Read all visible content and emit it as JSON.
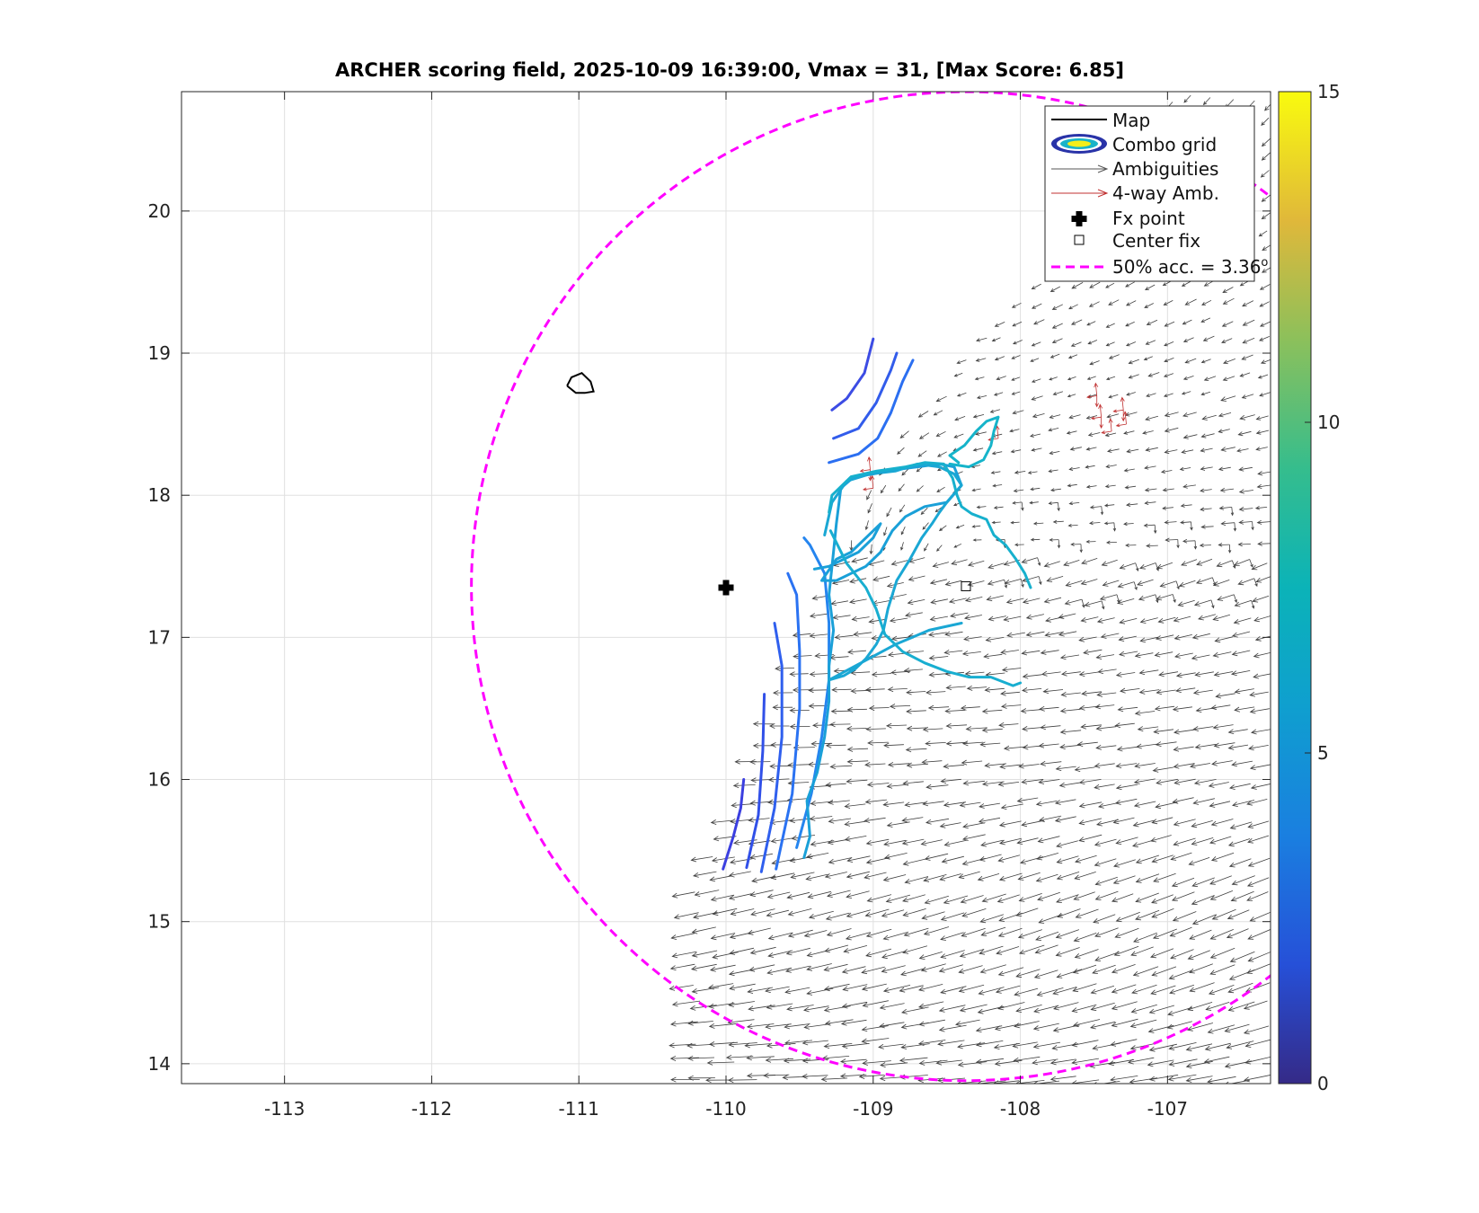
{
  "chart_data": {
    "type": "scatter",
    "title": "ARCHER scoring field, 2025-10-09 16:39:00, Vmax = 31, [Max Score: 6.85]",
    "xlabel": "",
    "ylabel": "",
    "xlim": [
      -113.7,
      -106.3
    ],
    "ylim": [
      13.86,
      20.84
    ],
    "xticks": [
      -113,
      -112,
      -111,
      -110,
      -109,
      -108,
      -107
    ],
    "yticks": [
      14,
      15,
      16,
      17,
      18,
      19,
      20
    ],
    "grid": true,
    "colorbar": {
      "min": 0,
      "max": 15,
      "ticks": [
        0,
        5,
        10,
        15
      ],
      "colormap": "parula"
    },
    "legend": {
      "placement": "top-right",
      "entries": [
        "Map",
        "Combo grid",
        "Ambiguities",
        "4-way Amb.",
        "Fx point",
        "Center fix",
        "50% acc. = 3.36°"
      ],
      "accuracy_label": "50% acc. = 3.36",
      "accuracy_superscript": "o"
    },
    "fx_point": {
      "x": -110.0,
      "y": 17.35
    },
    "center_fix": {
      "x": -108.37,
      "y": 17.36
    },
    "accuracy_circle": {
      "center_x": -108.37,
      "center_y": 17.36,
      "radius_deg": 3.36,
      "color": "#ff00ff"
    },
    "map_outlines": [
      [
        [
          -111.08,
          18.77
        ],
        [
          -111.05,
          18.83
        ],
        [
          -110.98,
          18.86
        ],
        [
          -110.92,
          18.8
        ],
        [
          -110.9,
          18.73
        ],
        [
          -110.96,
          18.72
        ],
        [
          -111.02,
          18.72
        ],
        [
          -111.08,
          18.77
        ]
      ]
    ],
    "contours": [
      {
        "level": 2.5,
        "color": "#3b3fe0",
        "points": [
          [
            -110.02,
            15.37
          ],
          [
            -109.95,
            15.6
          ],
          [
            -109.9,
            15.8
          ],
          [
            -109.88,
            16.0
          ]
        ]
      },
      {
        "level": 3.0,
        "color": "#3150e8",
        "points": [
          [
            -109.86,
            15.38
          ],
          [
            -109.78,
            15.75
          ],
          [
            -109.75,
            16.2
          ],
          [
            -109.74,
            16.6
          ]
        ]
      },
      {
        "level": 3.3,
        "color": "#2f5fee",
        "points": [
          [
            -109.76,
            15.35
          ],
          [
            -109.67,
            15.8
          ],
          [
            -109.62,
            16.3
          ],
          [
            -109.62,
            16.8
          ],
          [
            -109.67,
            17.1
          ]
        ]
      },
      {
        "level": 3.7,
        "color": "#2a72f2",
        "points": [
          [
            -109.66,
            15.37
          ],
          [
            -109.55,
            15.9
          ],
          [
            -109.5,
            16.5
          ],
          [
            -109.5,
            16.9
          ],
          [
            -109.52,
            17.3
          ],
          [
            -109.58,
            17.45
          ]
        ]
      },
      {
        "level": 4.2,
        "color": "#2585ef",
        "points": [
          [
            -109.52,
            15.52
          ],
          [
            -109.42,
            15.9
          ],
          [
            -109.35,
            16.3
          ],
          [
            -109.3,
            16.7
          ],
          [
            -109.3,
            17.1
          ],
          [
            -109.33,
            17.45
          ],
          [
            -109.43,
            17.65
          ],
          [
            -109.47,
            17.7
          ]
        ]
      },
      {
        "level": 2.6,
        "color": "#3c4ce4",
        "points": [
          [
            -109.28,
            18.6
          ],
          [
            -109.18,
            18.68
          ],
          [
            -109.06,
            18.86
          ],
          [
            -109.0,
            19.1
          ]
        ]
      },
      {
        "level": 3.2,
        "color": "#325ceb",
        "points": [
          [
            -109.27,
            18.4
          ],
          [
            -109.1,
            18.47
          ],
          [
            -108.98,
            18.65
          ],
          [
            -108.88,
            18.88
          ],
          [
            -108.84,
            19.0
          ]
        ]
      },
      {
        "level": 3.9,
        "color": "#2b6ff1",
        "points": [
          [
            -109.3,
            18.23
          ],
          [
            -109.1,
            18.29
          ],
          [
            -108.97,
            18.4
          ],
          [
            -108.88,
            18.58
          ],
          [
            -108.8,
            18.8
          ],
          [
            -108.73,
            18.95
          ]
        ]
      },
      {
        "level": 5.6,
        "color": "#1aa0d8",
        "points": [
          [
            -109.47,
            15.45
          ],
          [
            -109.43,
            15.6
          ],
          [
            -109.45,
            15.85
          ],
          [
            -109.38,
            16.05
          ],
          [
            -109.33,
            16.3
          ],
          [
            -109.3,
            16.55
          ],
          [
            -109.3,
            16.8
          ],
          [
            -109.27,
            17.05
          ],
          [
            -109.3,
            17.3
          ],
          [
            -109.27,
            17.6
          ],
          [
            -109.25,
            17.8
          ],
          [
            -109.22,
            18.05
          ],
          [
            -109.13,
            18.13
          ],
          [
            -109.0,
            18.15
          ],
          [
            -108.85,
            18.18
          ],
          [
            -108.7,
            18.2
          ],
          [
            -108.55,
            18.22
          ],
          [
            -108.45,
            18.2
          ],
          [
            -108.4,
            18.07
          ],
          [
            -108.5,
            17.95
          ],
          [
            -108.65,
            17.92
          ],
          [
            -108.78,
            17.85
          ],
          [
            -108.87,
            17.75
          ],
          [
            -108.95,
            17.6
          ],
          [
            -109.05,
            17.5
          ],
          [
            -109.15,
            17.45
          ],
          [
            -109.25,
            17.4
          ],
          [
            -109.35,
            17.4
          ],
          [
            -109.25,
            17.55
          ],
          [
            -109.15,
            17.6
          ],
          [
            -108.95,
            17.8
          ],
          [
            -109.0,
            17.7
          ],
          [
            -109.1,
            17.6
          ],
          [
            -109.2,
            17.55
          ],
          [
            -109.3,
            17.5
          ],
          [
            -109.4,
            17.48
          ]
        ]
      },
      {
        "level": 5.8,
        "color": "#1aa7d4",
        "points": [
          [
            -109.33,
            17.72
          ],
          [
            -109.28,
            17.95
          ],
          [
            -109.18,
            18.1
          ],
          [
            -109.02,
            18.15
          ],
          [
            -108.85,
            18.17
          ],
          [
            -108.7,
            18.22
          ],
          [
            -108.55,
            18.2
          ],
          [
            -108.45,
            18.15
          ],
          [
            -108.4,
            18.07
          ],
          [
            -108.5,
            17.95
          ],
          [
            -108.55,
            17.88
          ],
          [
            -108.6,
            17.8
          ],
          [
            -108.67,
            17.7
          ],
          [
            -108.75,
            17.55
          ],
          [
            -108.84,
            17.4
          ],
          [
            -108.9,
            17.2
          ],
          [
            -108.93,
            17.05
          ],
          [
            -108.98,
            16.95
          ],
          [
            -109.05,
            16.85
          ],
          [
            -109.12,
            16.78
          ],
          [
            -109.2,
            16.73
          ],
          [
            -109.3,
            16.7
          ],
          [
            -108.85,
            16.95
          ],
          [
            -108.62,
            17.05
          ],
          [
            -108.4,
            17.1
          ]
        ]
      },
      {
        "level": 6.2,
        "color": "#18aed0",
        "points": [
          [
            -109.29,
            17.75
          ],
          [
            -109.18,
            17.52
          ],
          [
            -109.05,
            17.35
          ],
          [
            -108.98,
            17.2
          ],
          [
            -108.92,
            17.02
          ],
          [
            -108.8,
            16.9
          ],
          [
            -108.65,
            16.82
          ],
          [
            -108.5,
            16.76
          ],
          [
            -108.35,
            16.72
          ],
          [
            -108.2,
            16.72
          ],
          [
            -108.05,
            16.66
          ],
          [
            -108.0,
            16.68
          ]
        ]
      },
      {
        "level": 6.4,
        "color": "#17b0cd",
        "points": [
          [
            -109.3,
            17.88
          ],
          [
            -109.28,
            18.0
          ],
          [
            -109.15,
            18.13
          ],
          [
            -108.98,
            18.17
          ],
          [
            -108.78,
            18.2
          ],
          [
            -108.65,
            18.23
          ],
          [
            -108.52,
            18.22
          ],
          [
            -108.46,
            18.12
          ],
          [
            -108.43,
            18.0
          ],
          [
            -108.4,
            17.92
          ],
          [
            -108.33,
            17.87
          ],
          [
            -108.23,
            17.83
          ],
          [
            -108.18,
            17.72
          ],
          [
            -108.1,
            17.65
          ],
          [
            -108.03,
            17.55
          ],
          [
            -107.97,
            17.45
          ],
          [
            -107.93,
            17.35
          ]
        ]
      },
      {
        "level": 6.6,
        "color": "#16b4ca",
        "points": [
          [
            -108.42,
            18.23
          ],
          [
            -108.48,
            18.28
          ],
          [
            -108.38,
            18.35
          ],
          [
            -108.3,
            18.45
          ],
          [
            -108.23,
            18.52
          ],
          [
            -108.15,
            18.55
          ],
          [
            -108.18,
            18.45
          ],
          [
            -108.2,
            18.35
          ],
          [
            -108.25,
            18.25
          ],
          [
            -108.35,
            18.2
          ],
          [
            -108.48,
            18.22
          ]
        ]
      }
    ]
  },
  "colors": {
    "accuracy_circle": "#ff00ff",
    "ambiguity_arrows": "#404040",
    "four_way_arrows": "#c03030",
    "grid": "#e0e0e0"
  }
}
